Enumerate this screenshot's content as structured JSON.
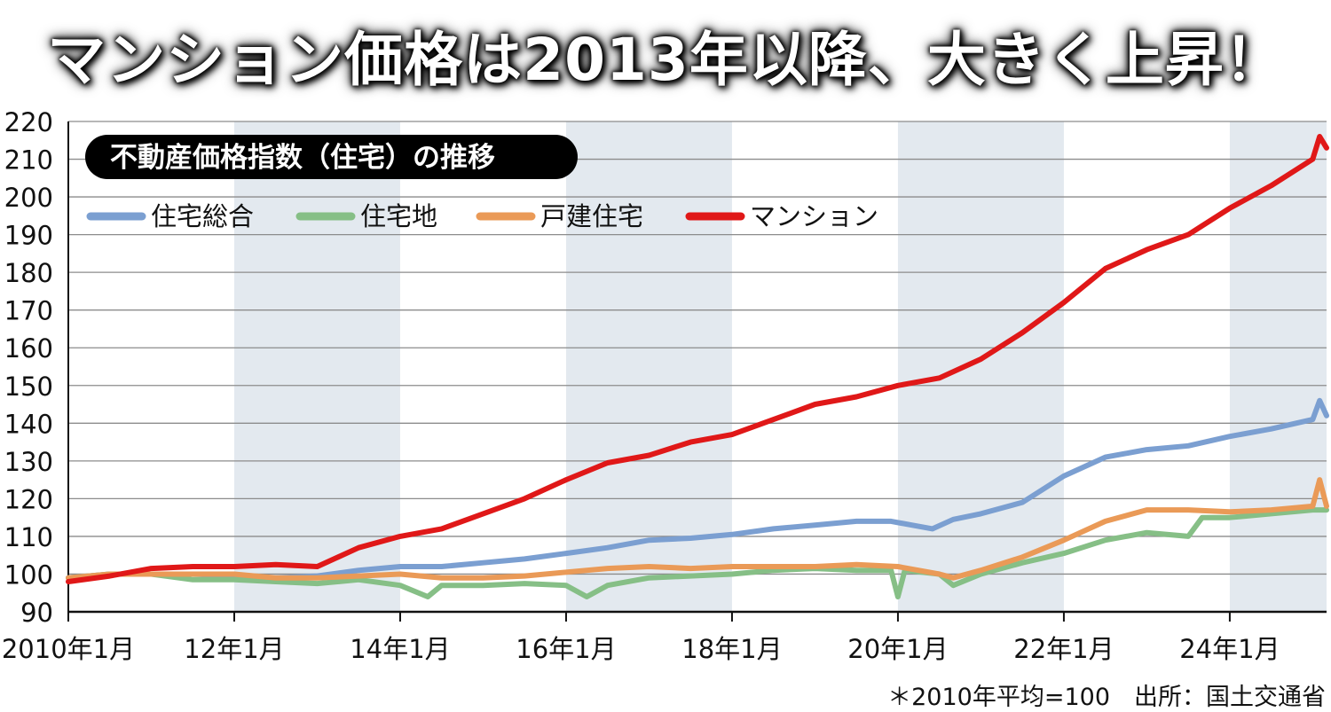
{
  "title": "マンション価格は2013年以降、大きく上昇！",
  "subtitle": "不動産価格指数（住宅）の推移",
  "footnote": "＊2010年平均=100　出所：国土交通省",
  "chart_data": {
    "type": "line",
    "y_ticks": [
      90,
      100,
      110,
      120,
      130,
      140,
      150,
      160,
      170,
      180,
      190,
      200,
      210,
      220
    ],
    "ylim": [
      90,
      220
    ],
    "x_range": [
      "2010-01",
      "2025-03"
    ],
    "x_tick_labels": [
      {
        "x": "2010-01",
        "label": "2010年1月"
      },
      {
        "x": "2012-01",
        "label": "12年1月"
      },
      {
        "x": "2014-01",
        "label": "14年1月"
      },
      {
        "x": "2016-01",
        "label": "16年1月"
      },
      {
        "x": "2018-01",
        "label": "18年1月"
      },
      {
        "x": "2020-01",
        "label": "20年1月"
      },
      {
        "x": "2022-01",
        "label": "22年1月"
      },
      {
        "x": "2024-01",
        "label": "24年1月"
      }
    ],
    "shaded_bands": [
      [
        "2012-01",
        "2014-01"
      ],
      [
        "2016-01",
        "2018-01"
      ],
      [
        "2020-01",
        "2022-01"
      ],
      [
        "2024-01",
        "2025-03"
      ]
    ],
    "grid": true,
    "legend_position": "top-left",
    "series": [
      {
        "name": "住宅総合",
        "color": "#7b9fd1",
        "points": [
          [
            "2010-01",
            99
          ],
          [
            "2010-07",
            100
          ],
          [
            "2011-01",
            100
          ],
          [
            "2011-07",
            100
          ],
          [
            "2012-01",
            99.5
          ],
          [
            "2012-07",
            99
          ],
          [
            "2013-01",
            99.5
          ],
          [
            "2013-07",
            101
          ],
          [
            "2014-01",
            102
          ],
          [
            "2014-07",
            102
          ],
          [
            "2015-01",
            103
          ],
          [
            "2015-07",
            104
          ],
          [
            "2016-01",
            105.5
          ],
          [
            "2016-07",
            107
          ],
          [
            "2017-01",
            109
          ],
          [
            "2017-07",
            109.5
          ],
          [
            "2018-01",
            110.5
          ],
          [
            "2018-07",
            112
          ],
          [
            "2019-01",
            113
          ],
          [
            "2019-07",
            114
          ],
          [
            "2019-12",
            114
          ],
          [
            "2020-03",
            113
          ],
          [
            "2020-06",
            112
          ],
          [
            "2020-09",
            114.5
          ],
          [
            "2021-01",
            116
          ],
          [
            "2021-07",
            119
          ],
          [
            "2022-01",
            126
          ],
          [
            "2022-07",
            131
          ],
          [
            "2023-01",
            133
          ],
          [
            "2023-07",
            134
          ],
          [
            "2024-01",
            136.5
          ],
          [
            "2024-07",
            138.5
          ],
          [
            "2025-01",
            141
          ],
          [
            "2025-02",
            146
          ],
          [
            "2025-03",
            142
          ]
        ]
      },
      {
        "name": "住宅地",
        "color": "#86bf86",
        "points": [
          [
            "2010-01",
            99
          ],
          [
            "2010-07",
            100
          ],
          [
            "2011-01",
            100
          ],
          [
            "2011-07",
            98.5
          ],
          [
            "2012-01",
            98.5
          ],
          [
            "2012-07",
            98
          ],
          [
            "2013-01",
            97.5
          ],
          [
            "2013-07",
            98.5
          ],
          [
            "2014-01",
            97
          ],
          [
            "2014-05",
            94
          ],
          [
            "2014-07",
            97
          ],
          [
            "2015-01",
            97
          ],
          [
            "2015-07",
            97.5
          ],
          [
            "2016-01",
            97
          ],
          [
            "2016-04",
            94
          ],
          [
            "2016-07",
            97
          ],
          [
            "2017-01",
            99
          ],
          [
            "2017-07",
            99.5
          ],
          [
            "2018-01",
            100
          ],
          [
            "2018-07",
            101
          ],
          [
            "2019-01",
            101.5
          ],
          [
            "2019-07",
            101
          ],
          [
            "2019-12",
            101
          ],
          [
            "2020-01",
            94
          ],
          [
            "2020-02",
            101
          ],
          [
            "2020-07",
            100
          ],
          [
            "2020-09",
            97
          ],
          [
            "2021-01",
            100
          ],
          [
            "2021-07",
            103
          ],
          [
            "2022-01",
            105.5
          ],
          [
            "2022-07",
            109
          ],
          [
            "2023-01",
            111
          ],
          [
            "2023-07",
            110
          ],
          [
            "2023-09",
            115
          ],
          [
            "2024-01",
            115
          ],
          [
            "2024-07",
            116
          ],
          [
            "2025-01",
            117
          ],
          [
            "2025-03",
            117
          ]
        ]
      },
      {
        "name": "戸建住宅",
        "color": "#ea9a57",
        "points": [
          [
            "2010-01",
            99
          ],
          [
            "2010-07",
            100
          ],
          [
            "2011-01",
            100
          ],
          [
            "2011-07",
            100
          ],
          [
            "2012-01",
            100
          ],
          [
            "2012-07",
            99
          ],
          [
            "2013-01",
            99
          ],
          [
            "2013-07",
            99.5
          ],
          [
            "2014-01",
            100
          ],
          [
            "2014-07",
            99
          ],
          [
            "2015-01",
            99
          ],
          [
            "2015-07",
            99.5
          ],
          [
            "2016-01",
            100.5
          ],
          [
            "2016-07",
            101.5
          ],
          [
            "2017-01",
            102
          ],
          [
            "2017-07",
            101.5
          ],
          [
            "2018-01",
            102
          ],
          [
            "2018-07",
            102
          ],
          [
            "2019-01",
            102
          ],
          [
            "2019-07",
            102.5
          ],
          [
            "2020-01",
            102
          ],
          [
            "2020-07",
            100
          ],
          [
            "2020-09",
            99
          ],
          [
            "2021-01",
            101
          ],
          [
            "2021-07",
            104.5
          ],
          [
            "2022-01",
            109
          ],
          [
            "2022-07",
            114
          ],
          [
            "2023-01",
            117
          ],
          [
            "2023-07",
            117
          ],
          [
            "2024-01",
            116.5
          ],
          [
            "2024-07",
            117
          ],
          [
            "2025-01",
            118
          ],
          [
            "2025-02",
            125
          ],
          [
            "2025-03",
            118
          ]
        ]
      },
      {
        "name": "マンション",
        "color": "#e01818",
        "points": [
          [
            "2010-01",
            98
          ],
          [
            "2010-07",
            99.5
          ],
          [
            "2011-01",
            101.5
          ],
          [
            "2011-07",
            102
          ],
          [
            "2012-01",
            102
          ],
          [
            "2012-07",
            102.5
          ],
          [
            "2013-01",
            102
          ],
          [
            "2013-07",
            107
          ],
          [
            "2014-01",
            110
          ],
          [
            "2014-07",
            112
          ],
          [
            "2015-01",
            116
          ],
          [
            "2015-07",
            120
          ],
          [
            "2016-01",
            125
          ],
          [
            "2016-07",
            129.5
          ],
          [
            "2017-01",
            131.5
          ],
          [
            "2017-07",
            135
          ],
          [
            "2018-01",
            137
          ],
          [
            "2018-07",
            141
          ],
          [
            "2019-01",
            145
          ],
          [
            "2019-07",
            147
          ],
          [
            "2020-01",
            150
          ],
          [
            "2020-07",
            152
          ],
          [
            "2021-01",
            157
          ],
          [
            "2021-07",
            164
          ],
          [
            "2022-01",
            172
          ],
          [
            "2022-07",
            181
          ],
          [
            "2023-01",
            186
          ],
          [
            "2023-07",
            190
          ],
          [
            "2024-01",
            197
          ],
          [
            "2024-07",
            203
          ],
          [
            "2025-01",
            210
          ],
          [
            "2025-02",
            216
          ],
          [
            "2025-03",
            213
          ]
        ]
      }
    ]
  }
}
